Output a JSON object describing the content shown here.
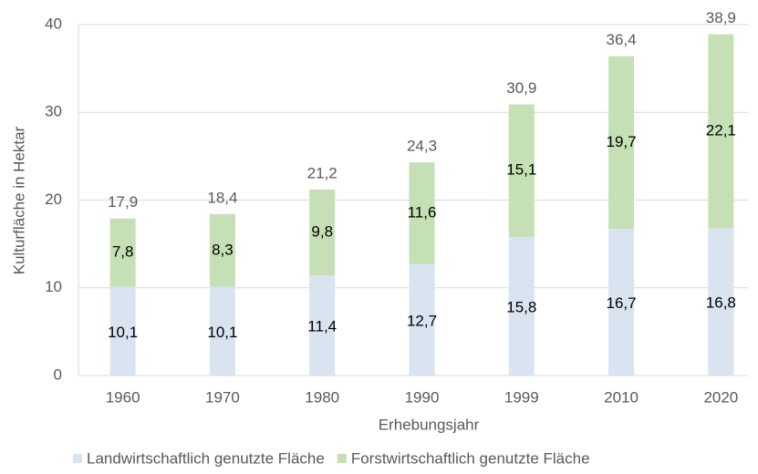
{
  "chart_data": {
    "type": "stacked_bar",
    "categories": [
      "1960",
      "1970",
      "1980",
      "1990",
      "1999",
      "2010",
      "2020"
    ],
    "series": [
      {
        "name": "Landwirtschaftlich genutzte Fläche",
        "color": "#dae3f0",
        "values": [
          10.1,
          10.1,
          11.4,
          12.7,
          15.8,
          16.7,
          16.8
        ],
        "value_labels": [
          "10,1",
          "10,1",
          "11,4",
          "12,7",
          "15,8",
          "16,7",
          "16,8"
        ]
      },
      {
        "name": "Forstwirtschaftlich genutzte Fläche",
        "color": "#c5e0b4",
        "values": [
          7.8,
          8.3,
          9.8,
          11.6,
          15.1,
          19.7,
          22.1
        ],
        "value_labels": [
          "7,8",
          "8,3",
          "9,8",
          "11,6",
          "15,1",
          "19,7",
          "22,1"
        ]
      }
    ],
    "totals": {
      "values": [
        17.9,
        18.4,
        21.2,
        24.3,
        30.9,
        36.4,
        38.9
      ],
      "value_labels": [
        "17,9",
        "18,4",
        "21,2",
        "24,3",
        "30,9",
        "36,4",
        "38,9"
      ]
    },
    "xlabel": "Erhebungsjahr",
    "ylabel": "Kulturfläche in Hektar",
    "ylim": [
      0,
      40
    ],
    "yticks": [
      0,
      10,
      20,
      30,
      40
    ],
    "grid": true,
    "legend": "bottom"
  }
}
